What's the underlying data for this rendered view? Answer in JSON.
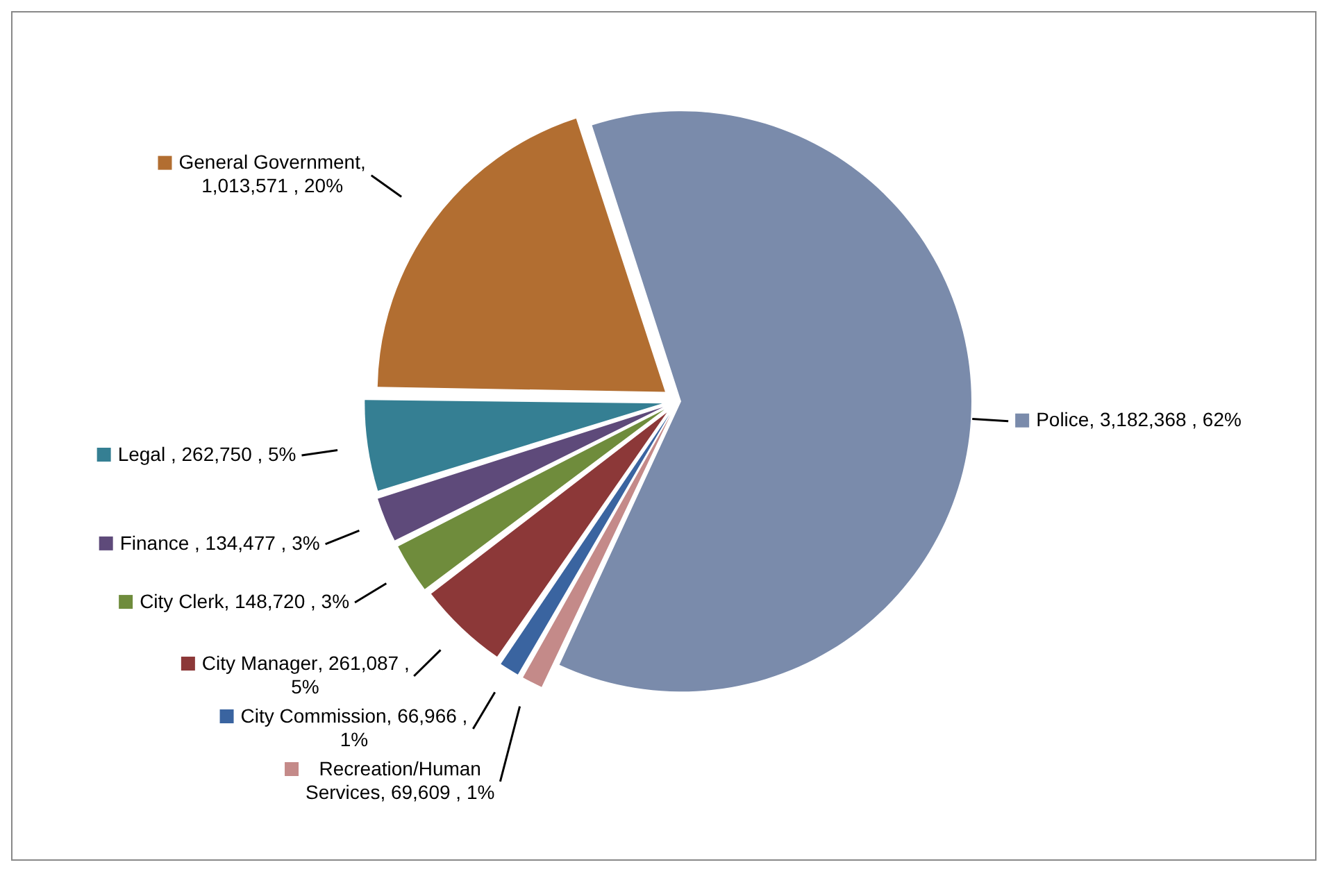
{
  "chart_data": {
    "type": "pie",
    "categories": [
      "Police",
      "Recreation/Human Services",
      "City Commission",
      "City Manager",
      "City Clerk",
      "Finance",
      "Legal",
      "General Government"
    ],
    "values": [
      3182368,
      69609,
      66966,
      261087,
      148720,
      134477,
      262750,
      1013571
    ],
    "value_labels": [
      ", 3,182,368 , 62%",
      ", 69,609 , 1%",
      ", 66,966 , 1%",
      ", 261,087 , 5%",
      ", 148,720 , 3%",
      " , 134,477 , 3%",
      " , 262,750 , 5%",
      ", 1,013,571 , 20%"
    ],
    "colors": [
      "#7a8bab",
      "#c48a89",
      "#3a64a0",
      "#8c3838",
      "#6f8c3c",
      "#5e4a7a",
      "#357f93",
      "#b26e31"
    ],
    "legend": "left"
  }
}
